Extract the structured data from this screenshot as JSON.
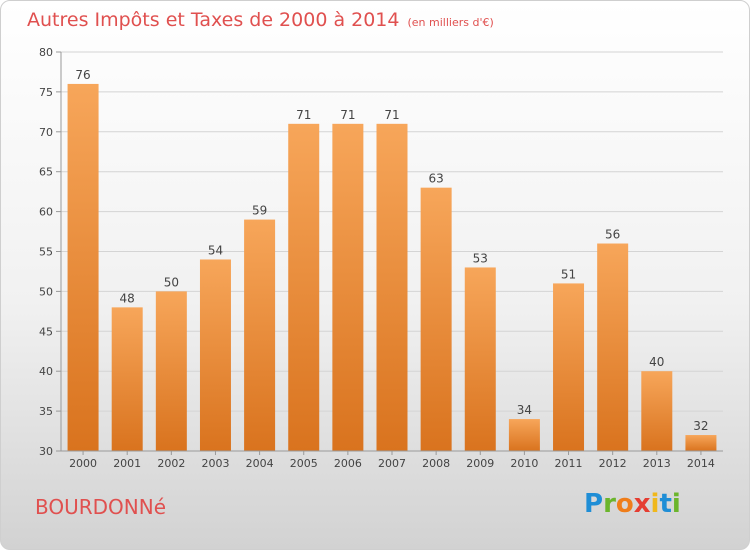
{
  "header": {
    "title": "Autres Impôts et Taxes de 2000 à 2014",
    "subtitle": "(en milliers d'€)"
  },
  "footer": {
    "commune": "BOURDONNé",
    "brand": "Proxiti"
  },
  "colors": {
    "title": "#e0504f",
    "bar_light": "#f7a65a",
    "bar_dark": "#d9731e",
    "grid": "#d4d4d4",
    "axis": "#999999",
    "brand_letters": [
      "#1f8ed6",
      "#6bb52c",
      "#ef7d1a",
      "#e53d31",
      "#f0b81c",
      "#1f8ed6",
      "#6bb52c"
    ]
  },
  "chart_data": {
    "type": "bar",
    "title": "Autres Impôts et Taxes de 2000 à 2014",
    "subtitle": "(en milliers d'€)",
    "xlabel": "",
    "ylabel": "",
    "categories": [
      "2000",
      "2001",
      "2002",
      "2003",
      "2004",
      "2005",
      "2006",
      "2007",
      "2008",
      "2009",
      "2010",
      "2011",
      "2012",
      "2013",
      "2014"
    ],
    "values": [
      76,
      48,
      50,
      54,
      59,
      71,
      71,
      71,
      63,
      53,
      34,
      51,
      56,
      40,
      32
    ],
    "data_labels": [
      "76",
      "48",
      "50",
      "54",
      "59",
      "71",
      "71",
      "71",
      "63",
      "53",
      "34",
      "51",
      "56",
      "40",
      "32"
    ],
    "ylim": [
      30,
      80
    ],
    "yticks": [
      "30",
      "35",
      "40",
      "45",
      "50",
      "55",
      "60",
      "65",
      "70",
      "75",
      "80"
    ],
    "grid": true,
    "legend": "none"
  }
}
